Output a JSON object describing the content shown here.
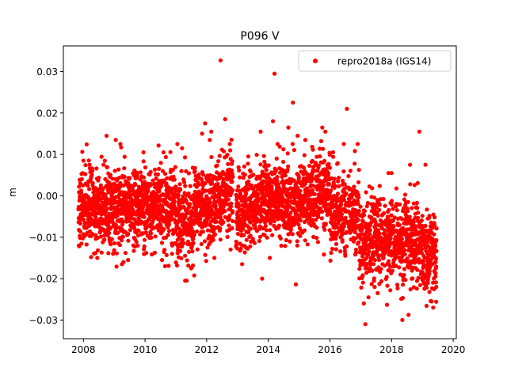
{
  "chart_data": {
    "type": "scatter",
    "title": "P096 V",
    "xlabel": "",
    "ylabel": "m",
    "xlim": [
      2007.35,
      2020.1
    ],
    "ylim": [
      -0.0345,
      0.0362
    ],
    "x_ticks": [
      2008,
      2010,
      2012,
      2014,
      2016,
      2018,
      2020
    ],
    "x_tick_labels": [
      "2008",
      "2010",
      "2012",
      "2014",
      "2016",
      "2018",
      "2020"
    ],
    "y_ticks": [
      -0.03,
      -0.02,
      -0.01,
      0.0,
      0.01,
      0.02,
      0.03
    ],
    "y_tick_labels": [
      "−0.03",
      "−0.02",
      "−0.01",
      "0.00",
      "0.01",
      "0.02",
      "0.03"
    ],
    "grid": false,
    "legend_position": "top-right",
    "series": [
      {
        "name": "repro2018a (IGS14)",
        "color": "#ff0000",
        "marker": "circle",
        "points": [
          [
            2007.85,
            -0.012
          ],
          [
            2007.9,
            0.003
          ],
          [
            2008.0,
            0.0085
          ],
          [
            2008.2,
            0.0075
          ],
          [
            2008.3,
            0.0025
          ],
          [
            2008.45,
            -0.015
          ],
          [
            2008.65,
            0.0075
          ],
          [
            2008.75,
            0.0145
          ],
          [
            2009.05,
            0.0135
          ],
          [
            2009.2,
            0.0125
          ],
          [
            2009.25,
            -0.0165
          ],
          [
            2009.3,
            -0.016
          ],
          [
            2009.45,
            -0.0155
          ],
          [
            2009.95,
            0.0105
          ],
          [
            2010.45,
            0.0065
          ],
          [
            2010.55,
            -0.0155
          ],
          [
            2010.6,
            0.0105
          ],
          [
            2010.65,
            -0.017
          ],
          [
            2011.05,
            0.0125
          ],
          [
            2011.2,
            0.0115
          ],
          [
            2011.3,
            -0.0205
          ],
          [
            2011.35,
            -0.0205
          ],
          [
            2011.5,
            -0.0175
          ],
          [
            2011.85,
            0.015
          ],
          [
            2011.95,
            0.0175
          ],
          [
            2012.1,
            0.0135
          ],
          [
            2012.15,
            0.0155
          ],
          [
            2012.25,
            -0.015
          ],
          [
            2012.45,
            0.0327
          ],
          [
            2012.6,
            0.0185
          ],
          [
            2012.75,
            0.0125
          ],
          [
            2013.15,
            -0.0165
          ],
          [
            2013.35,
            0.0095
          ],
          [
            2013.75,
            0.0155
          ],
          [
            2013.8,
            -0.02
          ],
          [
            2014.05,
            -0.015
          ],
          [
            2014.15,
            0.018
          ],
          [
            2014.2,
            0.0295
          ],
          [
            2014.3,
            0.0125
          ],
          [
            2014.65,
            0.0165
          ],
          [
            2014.8,
            0.0225
          ],
          [
            2014.95,
            0.0145
          ],
          [
            2015.2,
            0.0135
          ],
          [
            2015.75,
            0.0165
          ],
          [
            2015.85,
            0.0155
          ],
          [
            2016.1,
            0.0105
          ],
          [
            2016.45,
            0.0125
          ],
          [
            2016.55,
            0.021
          ],
          [
            2016.9,
            0.0125
          ],
          [
            2017.05,
            -0.0195
          ],
          [
            2017.1,
            -0.026
          ],
          [
            2017.15,
            -0.031
          ],
          [
            2017.25,
            -0.0245
          ],
          [
            2017.45,
            -0.022
          ],
          [
            2017.55,
            -0.0235
          ],
          [
            2017.9,
            0.0055
          ],
          [
            2018.0,
            0.0055
          ],
          [
            2018.35,
            -0.03
          ],
          [
            2018.6,
            0.0075
          ],
          [
            2018.9,
            0.0155
          ],
          [
            2019.1,
            0.0075
          ],
          [
            2019.3,
            -0.0255
          ],
          [
            2019.35,
            -0.027
          ],
          [
            2019.45,
            -0.022
          ]
        ]
      }
    ]
  }
}
